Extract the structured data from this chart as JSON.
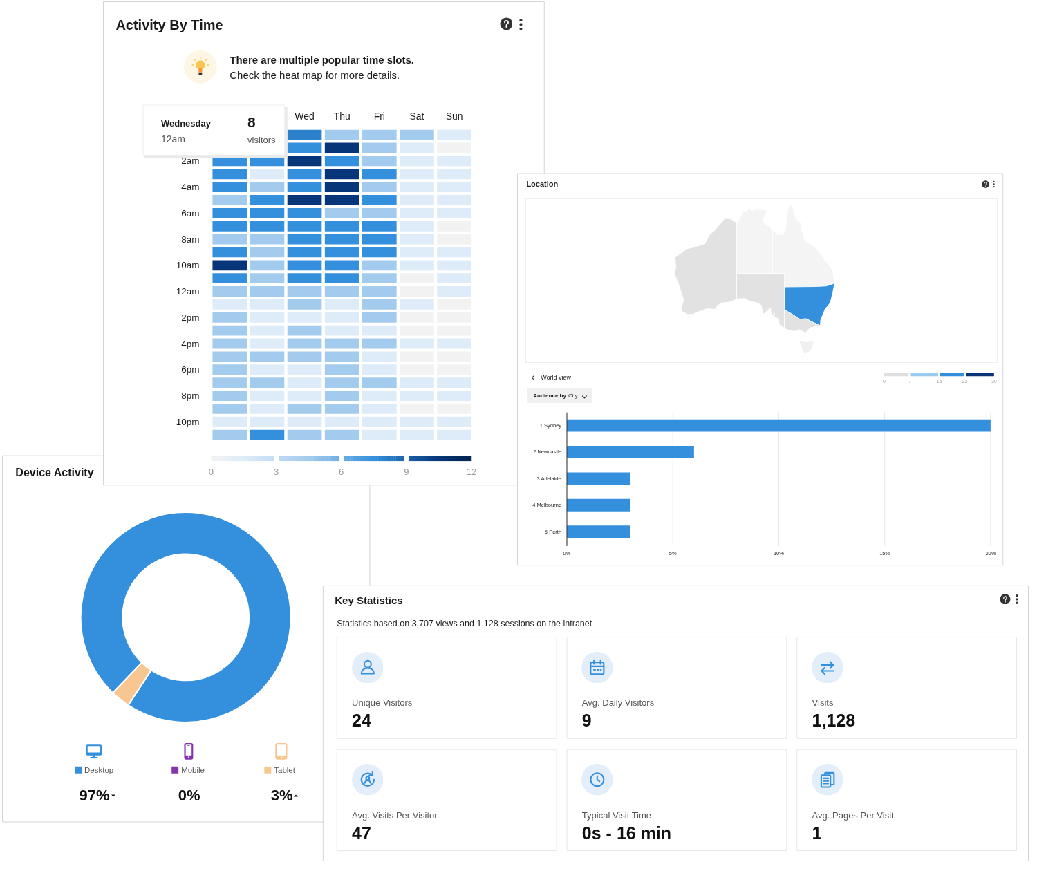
{
  "chart_data": [
    {
      "type": "heatmap",
      "title": "Activity By Time",
      "subtitle": "There are multiple popular time slots.\nCheck the heat map for more details.",
      "categories": [
        null,
        null,
        "Wed",
        "Thu",
        "Fri",
        "Sat",
        "Sun"
      ],
      "y_categories": [
        null,
        null,
        "2am",
        null,
        "4am",
        null,
        "6am",
        null,
        "8am",
        null,
        "10am",
        null,
        "12am",
        null,
        "2pm",
        null,
        "4pm",
        null,
        "6pm",
        null,
        "8pm",
        null,
        "10pm",
        null
      ],
      "cells": [
        [
          null,
          null,
          8,
          4.5,
          4.5,
          4.5,
          1.5
        ],
        [
          null,
          null,
          7.5,
          10.5,
          4.5,
          1.5,
          0
        ],
        [
          7.5,
          7.5,
          10.5,
          7.5,
          4.5,
          1.5,
          1.5
        ],
        [
          7.5,
          1.5,
          7.5,
          10.5,
          7.5,
          1.5,
          1.5
        ],
        [
          7.5,
          4.5,
          7.5,
          10.5,
          4.5,
          1.5,
          1.5
        ],
        [
          4.5,
          7.5,
          10.5,
          10.5,
          7.5,
          1.5,
          1.5
        ],
        [
          7.5,
          7.5,
          7.5,
          4.5,
          4.5,
          1.5,
          1.5
        ],
        [
          7.5,
          7.5,
          7.5,
          7.5,
          7.5,
          1.5,
          0
        ],
        [
          4.5,
          4.5,
          7.5,
          7.5,
          7.5,
          1.5,
          0
        ],
        [
          7.5,
          4.5,
          7.5,
          7.5,
          7.5,
          1.5,
          1.5
        ],
        [
          10.5,
          4.5,
          7.5,
          7.5,
          4.5,
          1.5,
          1.5
        ],
        [
          7.5,
          4.5,
          7.5,
          7.5,
          4.5,
          0,
          1.5
        ],
        [
          4.5,
          4.5,
          4.5,
          4.5,
          4.5,
          0,
          1.5
        ],
        [
          1.5,
          1.5,
          4.5,
          1.5,
          4.5,
          1.5,
          0
        ],
        [
          4.5,
          1.5,
          1.5,
          1.5,
          4.5,
          0,
          0
        ],
        [
          4.5,
          1.5,
          4.5,
          1.5,
          1.5,
          0,
          0
        ],
        [
          4.5,
          1.5,
          4.5,
          4.5,
          4.5,
          1.5,
          1.5
        ],
        [
          4.5,
          4.5,
          4.5,
          4.5,
          1.5,
          0,
          0
        ],
        [
          4.5,
          1.5,
          1.5,
          4.5,
          1.5,
          0,
          0
        ],
        [
          4.5,
          4.5,
          1.5,
          4.5,
          4.5,
          1.5,
          1.5
        ],
        [
          4.5,
          1.5,
          1.5,
          4.5,
          1.5,
          1.5,
          1.5
        ],
        [
          4.5,
          1.5,
          4.5,
          4.5,
          1.5,
          0,
          0
        ],
        [
          1.5,
          1.5,
          1.5,
          1.5,
          1.5,
          1.5,
          1.5
        ],
        [
          4.5,
          7.5,
          4.5,
          4.5,
          1.5,
          1.5,
          1.5
        ]
      ],
      "clim": [
        0,
        12
      ],
      "cticks": [
        0,
        3,
        6,
        9,
        12
      ],
      "annotations": [
        "Wednesday\n12am\n8\nvisitors"
      ]
    },
    {
      "type": "bar",
      "orientation": "horizontal",
      "title": "Location",
      "categories": [
        "1 Sydney",
        "2 Newcastle",
        "3 Adelaide",
        "4 Melbourne",
        "5 Perth"
      ],
      "values": [
        20,
        6,
        3,
        3,
        3
      ],
      "color": "#3490dd",
      "xlim": [
        0,
        20
      ],
      "xticks": [
        {
          "value": 0,
          "label": "0%"
        },
        {
          "value": 5,
          "label": "5%"
        },
        {
          "value": 10,
          "label": "10%"
        },
        {
          "value": 15,
          "label": "15%"
        },
        {
          "value": 20,
          "label": "20%"
        }
      ],
      "grid": "x",
      "clim": [
        0,
        30
      ],
      "cticks": [
        0,
        7,
        15,
        22,
        30
      ],
      "annotations": [
        "World view",
        "Audience by:",
        "City"
      ]
    },
    {
      "type": "donut",
      "title": "Device Activity",
      "categories": [
        "Desktop",
        "Mobile",
        "Tablet"
      ],
      "values": [
        97,
        0,
        3
      ],
      "colors": [
        "#3490dd",
        "#8535a8",
        "#f8c690"
      ],
      "value_labels": [
        "97%",
        "0%",
        "3%"
      ],
      "legend": "bottom"
    },
    {
      "type": "other",
      "title": "Key Statistics",
      "subtitle": "Statistics based on 3,707 views and 1,128 sessions on the intranet",
      "categories": [
        "Unique Visitors",
        "Avg. Daily Visitors",
        "Visits",
        "Avg. Visits Per Visitor",
        "Typical Visit Time",
        "Avg. Pages Per Visit"
      ],
      "value_labels": [
        "24",
        "9",
        "1,128",
        "47",
        "0s - 16 min",
        "1"
      ]
    }
  ]
}
